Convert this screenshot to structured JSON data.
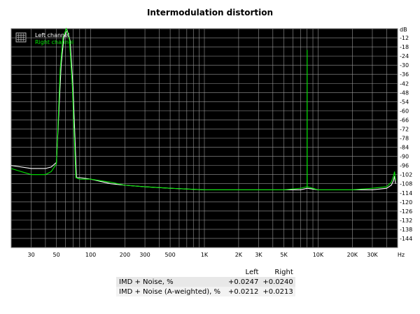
{
  "chart_data": {
    "type": "line",
    "title": "Intermodulation distortion",
    "xlabel": "",
    "ylabel": "",
    "x_unit": "Hz",
    "y_unit": "dB",
    "x_scale": "log",
    "xlim": [
      20,
      50000
    ],
    "ylim": [
      -150,
      -6
    ],
    "grid": true,
    "legend_position": "top-left",
    "x_ticks": [
      {
        "v": 30,
        "label": "30"
      },
      {
        "v": 50,
        "label": "50"
      },
      {
        "v": 100,
        "label": "100"
      },
      {
        "v": 200,
        "label": "200"
      },
      {
        "v": 300,
        "label": "300"
      },
      {
        "v": 500,
        "label": "500"
      },
      {
        "v": 1000,
        "label": "1K"
      },
      {
        "v": 2000,
        "label": "2K"
      },
      {
        "v": 3000,
        "label": "3K"
      },
      {
        "v": 5000,
        "label": "5K"
      },
      {
        "v": 10000,
        "label": "10K"
      },
      {
        "v": 20000,
        "label": "20K"
      },
      {
        "v": 30000,
        "label": "30K"
      }
    ],
    "y_ticks": [
      -12,
      -18,
      -24,
      -30,
      -36,
      -42,
      -48,
      -54,
      -60,
      -66,
      -72,
      -78,
      -84,
      -90,
      -96,
      -102,
      -108,
      -114,
      -120,
      -126,
      -132,
      -138,
      -144
    ],
    "series": [
      {
        "name": "Left channel",
        "color": "#ffffff",
        "points": [
          [
            20,
            -96
          ],
          [
            30,
            -98
          ],
          [
            40,
            -98
          ],
          [
            45,
            -97
          ],
          [
            50,
            -94
          ],
          [
            55,
            -30
          ],
          [
            58,
            -12
          ],
          [
            62,
            -7
          ],
          [
            66,
            -14
          ],
          [
            70,
            -45
          ],
          [
            75,
            -104
          ],
          [
            80,
            -104
          ],
          [
            100,
            -105
          ],
          [
            150,
            -108
          ],
          [
            200,
            -109
          ],
          [
            300,
            -110
          ],
          [
            500,
            -111
          ],
          [
            1000,
            -112
          ],
          [
            2000,
            -112
          ],
          [
            3000,
            -112
          ],
          [
            5000,
            -112
          ],
          [
            7000,
            -112
          ],
          [
            8000,
            -111
          ],
          [
            10000,
            -112
          ],
          [
            20000,
            -112
          ],
          [
            30000,
            -112
          ],
          [
            40000,
            -111
          ],
          [
            44000,
            -109
          ],
          [
            46000,
            -106
          ],
          [
            47000,
            -103
          ],
          [
            48000,
            -108
          ]
        ]
      },
      {
        "name": "Right channel",
        "color": "#00e600",
        "points": [
          [
            20,
            -98
          ],
          [
            30,
            -102
          ],
          [
            40,
            -102
          ],
          [
            45,
            -100
          ],
          [
            50,
            -95
          ],
          [
            54,
            -32
          ],
          [
            57,
            -12
          ],
          [
            61,
            -6
          ],
          [
            65,
            -13
          ],
          [
            69,
            -44
          ],
          [
            74,
            -104
          ],
          [
            80,
            -105
          ],
          [
            100,
            -105
          ],
          [
            150,
            -107
          ],
          [
            200,
            -109
          ],
          [
            300,
            -110
          ],
          [
            500,
            -111
          ],
          [
            1000,
            -112
          ],
          [
            2000,
            -112
          ],
          [
            3000,
            -112
          ],
          [
            5000,
            -112
          ],
          [
            7000,
            -111
          ],
          [
            8000,
            -110
          ],
          [
            8010,
            -20
          ],
          [
            8020,
            -110
          ],
          [
            10000,
            -112
          ],
          [
            20000,
            -112
          ],
          [
            30000,
            -111
          ],
          [
            40000,
            -110
          ],
          [
            44000,
            -107
          ],
          [
            46000,
            -103
          ],
          [
            47000,
            -100
          ],
          [
            48000,
            -106
          ]
        ]
      }
    ]
  },
  "results_table": {
    "headers": [
      "",
      "Left",
      "Right"
    ],
    "rows": [
      {
        "label": "IMD + Noise, %",
        "left": "+0.0247",
        "right": "+0.0240"
      },
      {
        "label": "IMD + Noise (A-weighted), %",
        "left": "+0.0212",
        "right": "+0.0213"
      }
    ]
  }
}
